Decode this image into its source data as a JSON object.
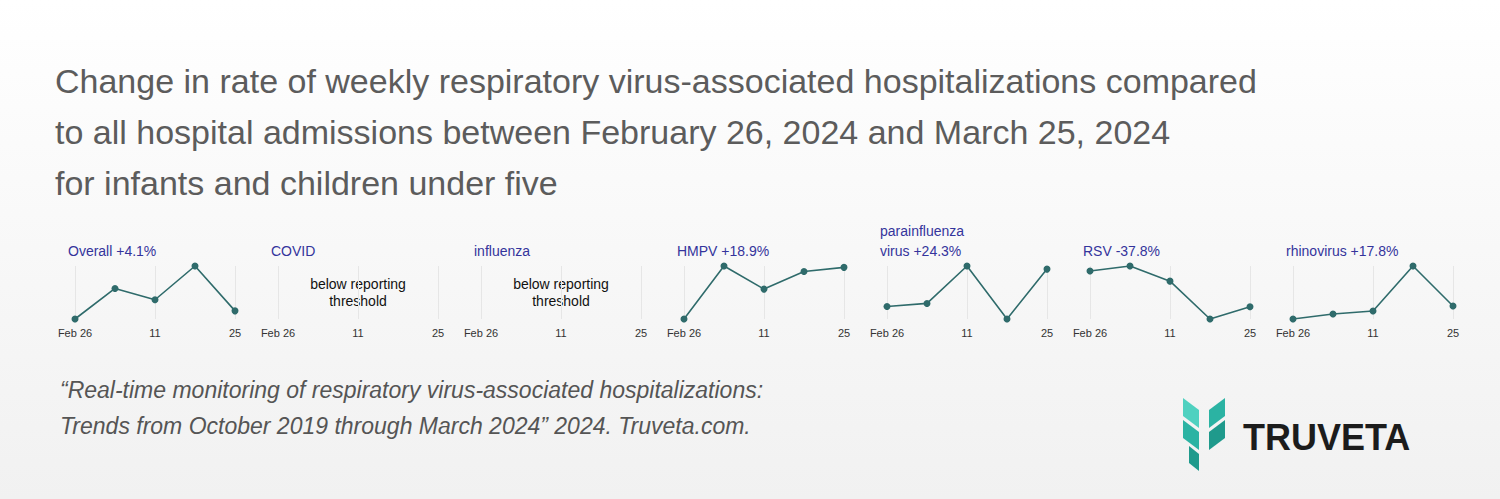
{
  "title": "Change in rate of weekly respiratory virus-associated hospitalizations compared\nto all hospital admissions between February 26, 2024 and March 25, 2024\nfor infants and children under five",
  "source": "“Real-time monitoring of respiratory virus-associated hospitalizations:\nTrends from October 2019 through March 2024” 2024. Truveta.com.",
  "brand": "TRUVETA",
  "chart_data": [
    {
      "type": "line",
      "title": "Overall +4.1%",
      "categories": [
        "Feb 26",
        null,
        "11",
        null,
        "25"
      ],
      "values": [
        10.0,
        11.54,
        10.97,
        12.67,
        10.41
      ],
      "ylim": [
        10.0,
        12.67
      ],
      "color": "#2f6b6b",
      "marker": "circle",
      "grid": true,
      "tick_labels": "x"
    },
    {
      "type": "line",
      "title": "COVID",
      "annotation": "below reporting\nthreshold",
      "categories": [
        "Feb 26",
        null,
        "11",
        null,
        "25"
      ],
      "values": [
        null,
        null,
        null,
        null,
        null
      ],
      "color": "#2f6b6b",
      "marker": "circle",
      "grid": true,
      "tick_labels": "x"
    },
    {
      "type": "line",
      "title": "influenza",
      "annotation": "below reporting\nthreshold",
      "categories": [
        "Feb 26",
        null,
        "11",
        null,
        "25"
      ],
      "values": [
        null,
        null,
        null,
        null,
        null
      ],
      "color": "#2f6b6b",
      "marker": "circle",
      "grid": true,
      "tick_labels": "x"
    },
    {
      "type": "line",
      "title": "HMPV +18.9%",
      "categories": [
        "Feb 26",
        null,
        "11",
        null,
        "25"
      ],
      "values": [
        2.0,
        2.39,
        2.22,
        2.35,
        2.38
      ],
      "ylim": [
        2.0,
        2.39
      ],
      "color": "#2f6b6b",
      "marker": "circle",
      "grid": true,
      "tick_labels": "x"
    },
    {
      "type": "line",
      "title": "parainfluenza\nvirus +24.3%",
      "categories": [
        "Feb 26",
        null,
        "11",
        null,
        "25"
      ],
      "values": [
        1.0,
        1.02,
        1.26,
        0.92,
        1.24
      ],
      "ylim": [
        0.92,
        1.26
      ],
      "color": "#2f6b6b",
      "marker": "circle",
      "grid": true,
      "tick_labels": "x"
    },
    {
      "type": "line",
      "title": "RSV -37.8%",
      "categories": [
        "Feb 26",
        null,
        "11",
        null,
        "25"
      ],
      "values": [
        3.0,
        3.16,
        2.68,
        1.48,
        1.87
      ],
      "ylim": [
        1.48,
        3.16
      ],
      "color": "#2f6b6b",
      "marker": "circle",
      "grid": true,
      "tick_labels": "x"
    },
    {
      "type": "line",
      "title": "rhinovirus +17.8%",
      "categories": [
        "Feb 26",
        null,
        "11",
        null,
        "25"
      ],
      "values": [
        4.0,
        4.27,
        4.44,
        6.9,
        4.71
      ],
      "ylim": [
        4.0,
        6.9
      ],
      "color": "#2f6b6b",
      "marker": "circle",
      "grid": true,
      "tick_labels": "x"
    }
  ]
}
